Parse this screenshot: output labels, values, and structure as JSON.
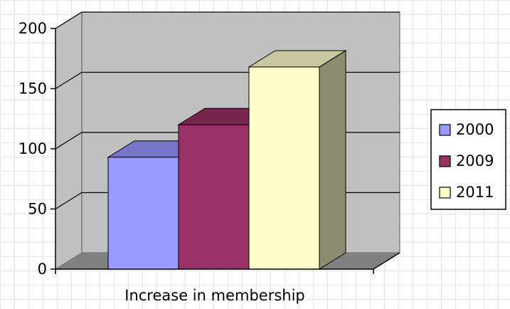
{
  "chart_data": {
    "type": "bar",
    "categories": [
      "Increase in membership"
    ],
    "series": [
      {
        "name": "2000",
        "values": [
          93
        ]
      },
      {
        "name": "2009",
        "values": [
          120
        ]
      },
      {
        "name": "2011",
        "values": [
          168
        ]
      }
    ],
    "colors": {
      "2000": "#9999ff",
      "2009": "#993366",
      "2011": "#ffffcc",
      "wall": "#c0c0c0",
      "floor": "#808080",
      "gridline": "#000000"
    },
    "ylim": [
      0,
      200
    ],
    "y_ticks": [
      "0",
      "50",
      "100",
      "150",
      "200"
    ],
    "xlabel": "",
    "ylabel": "",
    "grid": true,
    "legend": "right",
    "style": "3d-column"
  }
}
